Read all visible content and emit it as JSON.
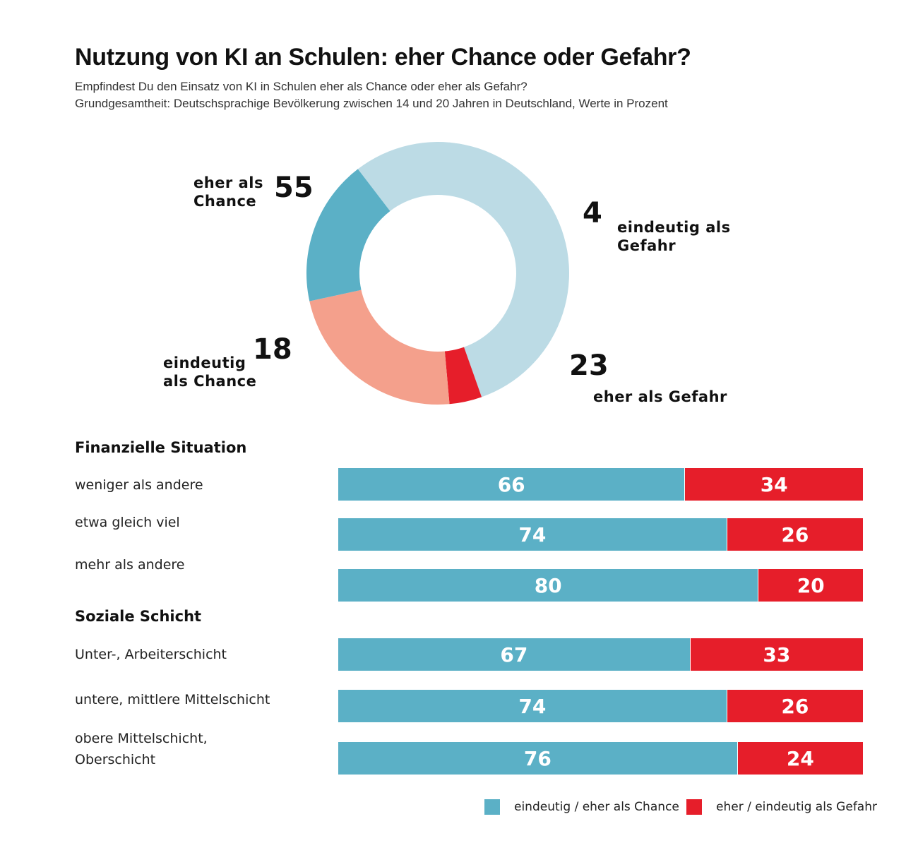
{
  "header": {
    "title": "Nutzung von KI an Schulen: eher Chance oder Gefahr?",
    "subtitle_question": "Empfindest Du den Einsatz von KI in Schulen eher als Chance oder eher als Gefahr?",
    "subtitle_basis": "Grundgesamtheit: Deutschsprachige Bevölkerung zwischen 14 und 20 Jahren in Deutschland, Werte in Prozent"
  },
  "colors": {
    "eher_chance": "#bcdbe5",
    "eindeutig_gefahr": "#e61e2a",
    "eher_gefahr": "#f4a08c",
    "eindeutig_chance": "#5bb0c6",
    "bar_chance": "#5bb0c6",
    "bar_gefahr": "#e61e2a"
  },
  "donut_labels": {
    "eher_chance": "eher als\nChance",
    "eindeutig_gefahr": "eindeutig als\nGefahr",
    "eher_gefahr": "eher als Gefahr",
    "eindeutig_chance": "eindeutig\nals Chance"
  },
  "sections": {
    "finanziell": "Finanzielle Situation",
    "sozial": "Soziale Schicht"
  },
  "chart_data": [
    {
      "type": "pie",
      "variant": "donut",
      "title": "Nutzung von KI an Schulen: eher Chance oder Gefahr?",
      "unit": "%",
      "slices": [
        {
          "key": "eher_chance",
          "label": "eher als Chance",
          "value": 55
        },
        {
          "key": "eindeutig_gefahr",
          "label": "eindeutig als Gefahr",
          "value": 4
        },
        {
          "key": "eher_gefahr",
          "label": "eher als Gefahr",
          "value": 23
        },
        {
          "key": "eindeutig_chance",
          "label": "eindeutig als Chance",
          "value": 18
        }
      ]
    },
    {
      "type": "bar",
      "orientation": "horizontal",
      "stacked": true,
      "unit": "%",
      "groups": [
        {
          "name": "Finanzielle Situation",
          "rows": [
            {
              "label": "weniger als andere",
              "chance": 66,
              "gefahr": 34
            },
            {
              "label": "etwa gleich viel",
              "chance": 74,
              "gefahr": 26
            },
            {
              "label": "mehr als andere",
              "chance": 80,
              "gefahr": 20
            }
          ]
        },
        {
          "name": "Soziale Schicht",
          "rows": [
            {
              "label": "Unter-, Arbeiterschicht",
              "chance": 67,
              "gefahr": 33
            },
            {
              "label": "untere, mittlere Mittelschicht",
              "chance": 74,
              "gefahr": 26
            },
            {
              "label": "obere Mittelschicht,\nOberschicht",
              "chance": 76,
              "gefahr": 24
            }
          ]
        }
      ],
      "series": [
        {
          "name": "eindeutig / eher als Chance",
          "key": "chance"
        },
        {
          "name": "eher / eindeutig als Gefahr",
          "key": "gefahr"
        }
      ],
      "legend_position": "bottom-right"
    }
  ]
}
